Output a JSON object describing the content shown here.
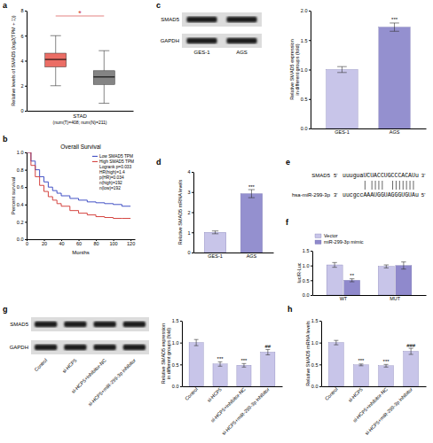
{
  "panel_labels": [
    "a",
    "b",
    "c",
    "d",
    "e",
    "f",
    "g",
    "h"
  ],
  "chart_data": [
    {
      "type": "box",
      "ylabel": "Relative levels of SMAD5 (log2(TPM + 1))",
      "xlabel": "STAD",
      "caption": "(num(T)=408; num(N)=211)",
      "annotation": "*",
      "categories": [
        null,
        null
      ],
      "boxes": [
        {
          "color": "#e8534a",
          "whislo": 2.0,
          "q1": 3.5,
          "median": 4.1,
          "q3": 4.6,
          "whishi": 6.0
        },
        {
          "color": "#6e6e6e",
          "whislo": 0.6,
          "q1": 2.1,
          "median": 2.7,
          "q3": 3.2,
          "whishi": 4.8
        }
      ],
      "ylim": [
        0,
        8
      ],
      "yticks": [
        0,
        2,
        4,
        6,
        8
      ],
      "tick_labels": "y"
    },
    {
      "type": "line",
      "title": "Overall Survival",
      "xlabel": "Months",
      "ylabel": "Percent survival",
      "x": [
        0,
        5,
        10,
        15,
        20,
        25,
        30,
        35,
        40,
        50,
        60,
        70,
        80,
        90,
        100,
        110,
        120
      ],
      "series": [
        {
          "name": "Low SMAD5 TPM",
          "color": "#2f3fbf",
          "values": [
            1.0,
            0.9,
            0.8,
            0.72,
            0.66,
            0.6,
            0.56,
            0.53,
            0.5,
            0.47,
            0.45,
            0.43,
            0.42,
            0.41,
            0.4,
            0.38,
            0.38
          ]
        },
        {
          "name": "High SMAD5 TPM",
          "color": "#d0312d",
          "values": [
            1.0,
            0.85,
            0.72,
            0.62,
            0.55,
            0.49,
            0.45,
            0.41,
            0.38,
            0.33,
            0.3,
            0.28,
            0.26,
            0.25,
            0.24,
            0.24,
            0.24
          ]
        }
      ],
      "annotations": [
        "Logrank p=0.033",
        "HR(high)=1.4",
        "p(HR)=0.034",
        "n(high)=192",
        "n(low)=192"
      ],
      "xlim": [
        0,
        125
      ],
      "xticks": [
        0,
        20,
        40,
        60,
        80,
        100,
        120
      ],
      "ylim": [
        0,
        1
      ],
      "yticks": [
        {
          "value": 0,
          "label": "0.0"
        },
        0.2,
        0.4,
        0.6,
        0.8,
        {
          "value": 1,
          "label": "1.0"
        }
      ],
      "legend": "upper right",
      "line_style": "step"
    },
    {
      "type": "bar",
      "categories": [
        "GES-1",
        "AGS"
      ],
      "values": [
        1.0,
        1.72
      ],
      "errors": [
        0.05,
        0.07
      ],
      "colors": [
        "#c8c5e9",
        "#9490cf"
      ],
      "annotations": [
        null,
        "***"
      ],
      "ylabel": "Relative SMAD5 expression in different groups (fold)",
      "ylim": [
        0,
        2
      ],
      "yticks": [
        {
          "value": 0,
          "label": "0.0"
        },
        0.5,
        {
          "value": 1,
          "label": "1.0"
        },
        1.5,
        {
          "value": 2,
          "label": "2.0"
        }
      ]
    },
    {
      "type": "bar",
      "categories": [
        "GES-1",
        "AGS"
      ],
      "values": [
        1.0,
        2.92
      ],
      "errors": [
        0.07,
        0.2
      ],
      "colors": [
        "#c8c5e9",
        "#9490cf"
      ],
      "annotations": [
        null,
        "***"
      ],
      "ylabel": "Relative SMAD5 mRNA levels",
      "ylim": [
        0,
        4
      ],
      "yticks": [
        0,
        1,
        2,
        3,
        4
      ]
    },
    {
      "type": "bar",
      "categories": [
        "WT",
        "MUT"
      ],
      "series": [
        {
          "name": "Vector",
          "color": "#c8c5e9",
          "values": [
            1.02,
            0.97
          ],
          "errors": [
            0.08,
            0.05
          ]
        },
        {
          "name": "miR-299-3p mimic",
          "color": "#8f89cc",
          "values": [
            0.5,
            1.0
          ],
          "errors": [
            0.05,
            0.12
          ],
          "annotations": [
            "**",
            null
          ]
        }
      ],
      "ylabel": "luc/R-Luc",
      "ylim": [
        0,
        1.5
      ],
      "yticks": [
        {
          "value": 0,
          "label": "0.0"
        },
        0.5,
        {
          "value": 1,
          "label": "1.0"
        },
        1.5
      ],
      "legend": "upper left"
    },
    {
      "type": "bar",
      "categories": [
        "Control",
        "si-HCP5",
        "si-HCP5+inhibitor-NC",
        "si-HCP5+miR-299-3p inhibitor"
      ],
      "values": [
        1.0,
        0.51,
        0.48,
        0.78
      ],
      "errors": [
        0.07,
        0.05,
        0.04,
        0.06
      ],
      "color": "#c8c5e9",
      "annotations": [
        null,
        "***",
        "***",
        "##"
      ],
      "ylabel": "Relative SMAD5 expression in different groups (fold)",
      "ylim": [
        0,
        1.5
      ],
      "yticks": [
        {
          "value": 0,
          "label": "0.0"
        },
        0.5,
        {
          "value": 1,
          "label": "1.0"
        },
        1.5
      ]
    },
    {
      "type": "bar",
      "categories": [
        "Control",
        "si-HCP5",
        "si-HCP5+inhibitor-NC",
        "si-HCP5+miR-299-3p inhibitor"
      ],
      "values": [
        1.0,
        0.49,
        0.47,
        0.8
      ],
      "errors": [
        0.05,
        0.02,
        0.03,
        0.07
      ],
      "color": "#c8c5e9",
      "annotations": [
        null,
        "***",
        "***",
        "###"
      ],
      "ylabel": "Relative SMAD5 mRNA levels",
      "ylim": [
        0,
        1.5
      ],
      "yticks": [
        {
          "value": 0,
          "label": "0.0"
        },
        0.5,
        {
          "value": 1,
          "label": "1.0"
        },
        1.5
      ]
    }
  ],
  "blots": [
    {
      "rows": [
        "SMAD5",
        "GAPDH"
      ],
      "lanes": [
        "GES-1",
        "AGS"
      ]
    },
    {
      "rows": [
        "SMAD5",
        "GAPDH"
      ],
      "lanes": [
        "Control",
        "si-HCP5",
        "si-HCP5+inhibitor-NC",
        "si-HCP5+miR-299-3p inhibitor"
      ]
    }
  ],
  "sequence": {
    "target": {
      "name": "SMAD5",
      "left": "5'",
      "seq": "uuuguaUCUACCUGCCCACAUu",
      "right": "3'"
    },
    "mirna": {
      "name": "hsa-miR-299-3p",
      "left": "3'",
      "seq": "uucgccAAAUGGUAGGGUGUAu",
      "right": "5'"
    }
  }
}
